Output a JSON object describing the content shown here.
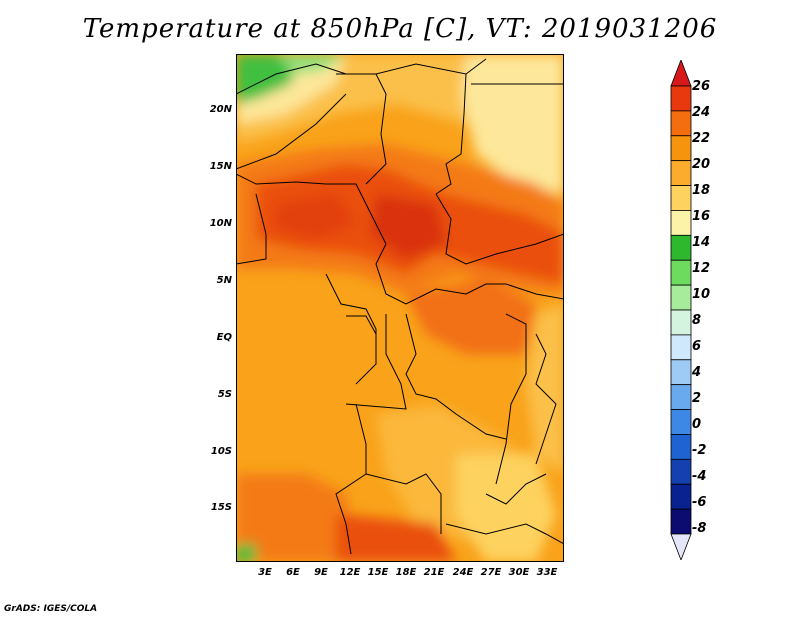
{
  "title": "Temperature at 850hPa [C], VT: 2019031206",
  "credit": "GrADS: IGES/COLA",
  "lat_labels": [
    "20N",
    "15N",
    "10N",
    "5N",
    "EQ",
    "5S",
    "10S",
    "15S"
  ],
  "lon_labels": [
    "3E",
    "6E",
    "9E",
    "12E",
    "15E",
    "18E",
    "21E",
    "24E",
    "27E",
    "30E",
    "33E"
  ],
  "colorbar": {
    "labels": [
      "26",
      "24",
      "22",
      "20",
      "18",
      "16",
      "14",
      "12",
      "10",
      "8",
      "6",
      "4",
      "2",
      "0",
      "-2",
      "-4",
      "-6",
      "-8"
    ],
    "colors": [
      "#d7191c",
      "#e8390e",
      "#f46d0e",
      "#f7940d",
      "#fbac2c",
      "#fdd25e",
      "#fdf3a8",
      "#2eb82e",
      "#6ddc5e",
      "#a7ec9a",
      "#d4f4e0",
      "#cfe8fb",
      "#9ecbf5",
      "#69aaee",
      "#3d88e5",
      "#1f62d2",
      "#1440b0",
      "#0a2190",
      "#0b0b70",
      "#e6e6fa"
    ]
  }
}
